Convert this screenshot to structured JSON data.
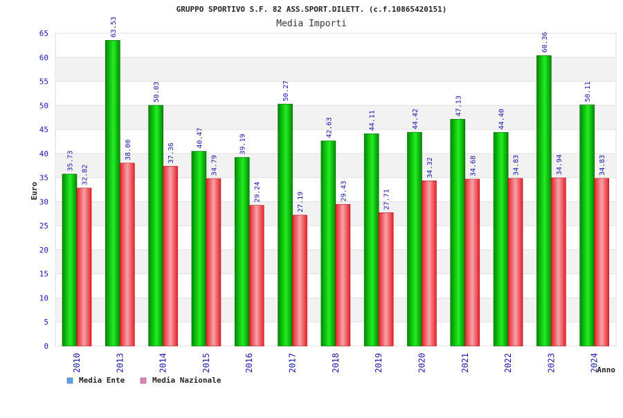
{
  "colors": {
    "ente_legend": "#5ba3e6",
    "nazionale_legend": "#de84b4",
    "ente_bar_dark": "#008a00",
    "ente_bar_light": "#22ee22",
    "naz_bar_dark": "#e8202a",
    "naz_bar_light": "#f5a3a8",
    "band": "#f2f2f2",
    "axis_text": "#1a1aa6"
  },
  "chart_data": {
    "type": "bar",
    "title": "GRUPPO SPORTIVO S.F. 82 ASS.SPORT.DILETT. (c.f.10865420151)",
    "subtitle": "Media Importi",
    "xlabel": "Anno",
    "ylabel": "Euro",
    "ylim": [
      0,
      65
    ],
    "yticks": [
      0,
      5,
      10,
      15,
      20,
      25,
      30,
      35,
      40,
      45,
      50,
      55,
      60,
      65
    ],
    "grid": "horizontal alternating bands",
    "legend_position": "bottom-left",
    "categories": [
      "2010",
      "2013",
      "2014",
      "2015",
      "2016",
      "2017",
      "2018",
      "2019",
      "2020",
      "2021",
      "2022",
      "2023",
      "2024"
    ],
    "series": [
      {
        "name": "Media Ente",
        "values": [
          35.73,
          63.53,
          50.03,
          40.47,
          39.19,
          50.27,
          42.63,
          44.11,
          44.42,
          47.13,
          44.4,
          60.36,
          50.11
        ],
        "labels": [
          "35.73",
          "63.53",
          "50.03",
          "40.47",
          "39.19",
          "50.27",
          "42.63",
          "44.11",
          "44.42",
          "47.13",
          "44.40",
          "60.36",
          "50.11"
        ]
      },
      {
        "name": "Media Nazionale",
        "values": [
          32.82,
          38.0,
          37.36,
          34.79,
          29.24,
          27.19,
          29.43,
          27.71,
          34.32,
          34.68,
          34.83,
          34.94,
          34.83
        ],
        "labels": [
          "32.82",
          "38.00",
          "37.36",
          "34.79",
          "29.24",
          "27.19",
          "29.43",
          "27.71",
          "34.32",
          "34.68",
          "34.83",
          "34.94",
          "34.83"
        ]
      }
    ]
  }
}
